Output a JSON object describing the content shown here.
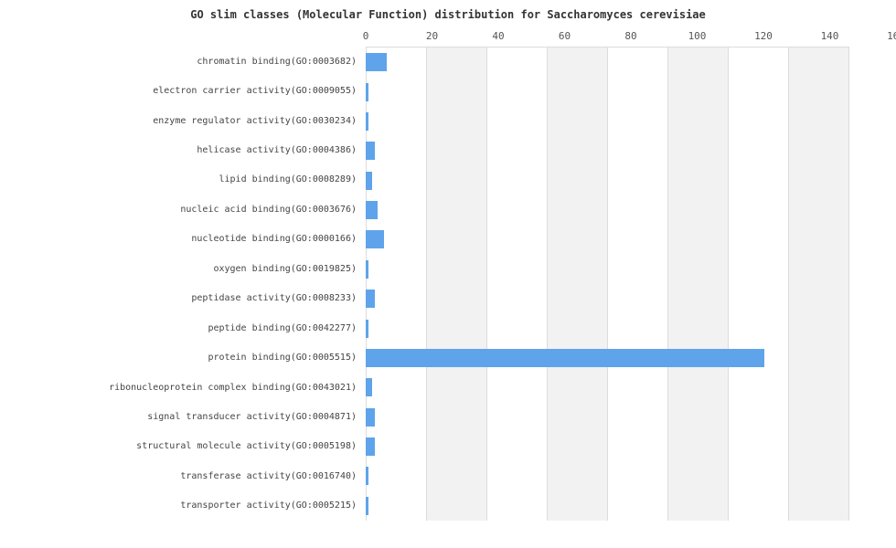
{
  "chart": {
    "title": "GO slim classes (Molecular Function) distribution for Saccharomyces cerevisiae"
  },
  "chart_data": {
    "type": "bar",
    "orientation": "horizontal",
    "title": "GO slim classes (Molecular Function) distribution for Saccharomyces cerevisiae",
    "categories": [
      "chromatin binding(GO:0003682)",
      "electron carrier activity(GO:0009055)",
      "enzyme regulator activity(GO:0030234)",
      "helicase activity(GO:0004386)",
      "lipid binding(GO:0008289)",
      "nucleic acid binding(GO:0003676)",
      "nucleotide binding(GO:0000166)",
      "oxygen binding(GO:0019825)",
      "peptidase activity(GO:0008233)",
      "peptide binding(GO:0042277)",
      "protein binding(GO:0005515)",
      "ribonucleoprotein complex binding(GO:0043021)",
      "signal transducer activity(GO:0004871)",
      "structural molecule activity(GO:0005198)",
      "transferase activity(GO:0016740)",
      "transporter activity(GO:0005215)"
    ],
    "values": [
      7,
      1,
      1,
      3,
      2,
      4,
      6,
      1,
      3,
      1,
      132,
      2,
      3,
      3,
      1,
      1
    ],
    "xlabel": "",
    "ylabel": "",
    "xlim": [
      0,
      160
    ],
    "xticks": [
      0,
      20,
      40,
      60,
      80,
      100,
      120,
      140,
      160
    ],
    "grid": "alternating-vertical-bands",
    "legend": "none",
    "bar_color": "#5fa4ea",
    "band_color": "#f2f2f2",
    "gridline_color": "#dcdcdc",
    "title_color": "#333333",
    "label_color": "#444444",
    "tick_color": "#555555"
  }
}
